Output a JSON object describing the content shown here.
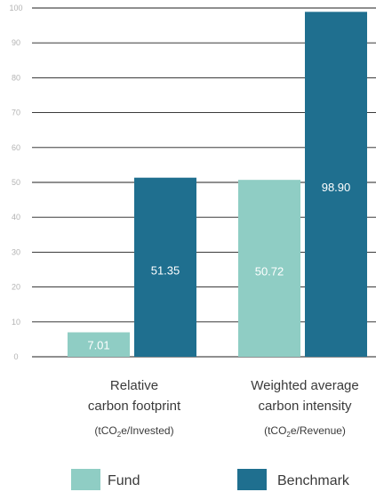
{
  "chart_data": {
    "type": "bar",
    "categories": [
      {
        "lines": [
          "Relative",
          "carbon footprint"
        ],
        "unit": {
          "pre": "(tCO",
          "sub": "2",
          "post": "e/Invested)"
        }
      },
      {
        "lines": [
          "Weighted average",
          "carbon intensity"
        ],
        "unit": {
          "pre": "(tCO",
          "sub": "2",
          "post": "e/Revenue)"
        }
      }
    ],
    "series": [
      {
        "name": "Fund",
        "values": [
          7.01,
          50.72
        ],
        "labels": [
          "7.01",
          "50.72"
        ],
        "color": "#8fcdc4"
      },
      {
        "name": "Benchmark",
        "values": [
          51.35,
          98.9
        ],
        "labels": [
          "51.35",
          "98.90"
        ],
        "color": "#1f6f8f"
      }
    ],
    "yticks": [
      "0",
      "10",
      "20",
      "30",
      "40",
      "50",
      "60",
      "70",
      "80",
      "90",
      "100"
    ],
    "ylim": [
      0,
      100
    ],
    "grid": true,
    "legend_position": "bottom"
  }
}
